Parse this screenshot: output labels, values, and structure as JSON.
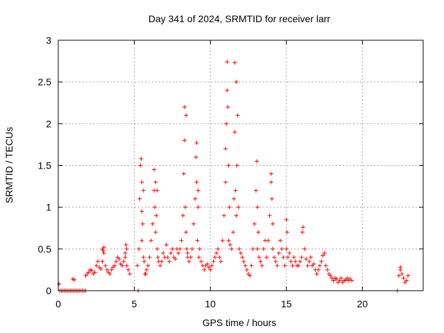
{
  "chart_data": {
    "type": "scatter",
    "title": "Day 341 of 2024, SRMTID for receiver larr",
    "xlabel": "GPS time / hours",
    "ylabel": "SRMTID / TECUs",
    "xlim": [
      0,
      24
    ],
    "ylim": [
      0,
      3
    ],
    "xticks": [
      0,
      5,
      10,
      15,
      20
    ],
    "yticks": [
      0,
      0.5,
      1,
      1.5,
      2,
      2.5,
      3
    ],
    "ytick_labels": [
      "0",
      "0.5",
      "1",
      "1.5",
      "2",
      "2.5",
      "3"
    ],
    "grid": true,
    "marker": "+",
    "series_color": "#ff0000",
    "series": [
      {
        "name": "SRMTID",
        "x": [
          0.05,
          0.1,
          0.2,
          0.3,
          0.4,
          0.5,
          0.6,
          0.7,
          0.8,
          0.9,
          1.0,
          1.1,
          1.2,
          1.3,
          1.4,
          1.5,
          1.6,
          1.7,
          1.8,
          0.95,
          1.05,
          1.8,
          1.9,
          2.0,
          2.1,
          2.2,
          2.3,
          2.4,
          2.5,
          2.6,
          2.7,
          2.8,
          2.9,
          3.0,
          3.1,
          3.2,
          3.3,
          3.4,
          3.5,
          3.6,
          3.7,
          3.8,
          3.9,
          4.0,
          4.1,
          4.2,
          4.3,
          4.4,
          4.5,
          4.6,
          4.7,
          2.9,
          2.95,
          3.0,
          4.4,
          4.5,
          4.45,
          5.2,
          5.3,
          5.35,
          5.4,
          5.45,
          5.5,
          5.5,
          5.5,
          5.55,
          5.6,
          5.6,
          5.65,
          5.7,
          5.75,
          5.8,
          5.9,
          6.0,
          6.1,
          6.2,
          6.3,
          6.3,
          6.35,
          6.4,
          6.4,
          6.45,
          6.5,
          6.5,
          6.55,
          6.6,
          6.7,
          6.8,
          6.9,
          7.0,
          7.1,
          7.2,
          7.3,
          7.4,
          7.5,
          7.6,
          7.7,
          7.8,
          7.9,
          8.0,
          8.1,
          8.2,
          8.25,
          8.3,
          8.3,
          8.35,
          8.4,
          8.4,
          8.45,
          8.5,
          8.5,
          8.6,
          8.7,
          8.8,
          8.9,
          9.0,
          9.05,
          9.1,
          9.1,
          9.15,
          9.2,
          9.2,
          9.25,
          9.3,
          9.4,
          9.5,
          9.6,
          9.7,
          9.8,
          9.9,
          10.0,
          10.1,
          10.2,
          10.3,
          10.4,
          10.5,
          10.6,
          10.7,
          10.8,
          10.9,
          11.0,
          11.0,
          11.05,
          11.1,
          11.1,
          11.15,
          11.2,
          11.2,
          11.25,
          11.3,
          11.4,
          11.5,
          11.55,
          11.6,
          11.6,
          11.65,
          11.7,
          11.7,
          11.75,
          11.8,
          11.85,
          11.9,
          12.0,
          12.1,
          12.2,
          12.3,
          12.4,
          12.5,
          12.6,
          12.7,
          12.8,
          12.9,
          13.0,
          13.05,
          13.1,
          13.1,
          13.15,
          13.2,
          13.3,
          13.4,
          13.5,
          13.6,
          13.7,
          13.8,
          13.9,
          14.0,
          14.0,
          14.05,
          14.1,
          14.1,
          14.2,
          14.3,
          14.4,
          14.5,
          14.6,
          14.7,
          14.8,
          14.9,
          15.0,
          15.0,
          15.05,
          15.1,
          15.2,
          15.3,
          15.4,
          15.5,
          15.6,
          15.7,
          15.8,
          15.9,
          16.0,
          16.05,
          16.1,
          16.2,
          16.3,
          16.4,
          16.5,
          16.6,
          16.7,
          16.8,
          16.9,
          17.0,
          17.1,
          17.2,
          17.3,
          17.4,
          17.5,
          17.6,
          17.7,
          17.8,
          17.9,
          18.0,
          18.1,
          18.2,
          18.3,
          18.4,
          18.5,
          18.6,
          18.7,
          18.8,
          18.9,
          19.0,
          19.1,
          19.2,
          19.3,
          5.25,
          22.3,
          22.4,
          22.5,
          22.5,
          22.6,
          22.7,
          22.8,
          22.9,
          23.0
        ],
        "y": [
          0.08,
          0.0,
          0.0,
          0.0,
          0.0,
          0.0,
          0.0,
          0.0,
          0.0,
          0.0,
          0.0,
          0.0,
          0.0,
          0.0,
          0.0,
          0.0,
          0.0,
          0.0,
          0.0,
          0.14,
          0.13,
          0.18,
          0.2,
          0.22,
          0.25,
          0.24,
          0.2,
          0.22,
          0.3,
          0.35,
          0.28,
          0.26,
          0.35,
          0.45,
          0.3,
          0.25,
          0.22,
          0.2,
          0.25,
          0.28,
          0.3,
          0.35,
          0.4,
          0.38,
          0.32,
          0.3,
          0.35,
          0.4,
          0.3,
          0.25,
          0.2,
          0.5,
          0.48,
          0.52,
          0.45,
          0.5,
          0.55,
          0.3,
          0.5,
          1.1,
          1.5,
          1.58,
          0.6,
          0.95,
          1.3,
          0.8,
          0.4,
          1.2,
          0.35,
          0.2,
          0.2,
          0.25,
          0.3,
          0.4,
          0.6,
          0.8,
          1.2,
          1.45,
          1.0,
          0.7,
          1.3,
          0.9,
          0.5,
          1.2,
          0.4,
          0.35,
          0.3,
          0.35,
          0.45,
          0.4,
          0.55,
          0.4,
          0.35,
          0.45,
          0.5,
          0.4,
          0.38,
          0.5,
          0.45,
          0.5,
          0.6,
          0.9,
          1.4,
          2.2,
          1.8,
          1.0,
          0.7,
          2.1,
          0.5,
          0.45,
          0.4,
          0.35,
          0.4,
          0.5,
          0.8,
          1.1,
          1.6,
          1.77,
          1.3,
          0.6,
          1.0,
          1.2,
          0.4,
          0.5,
          0.35,
          0.3,
          0.25,
          0.3,
          0.32,
          0.28,
          0.25,
          0.3,
          0.35,
          0.4,
          0.45,
          0.5,
          0.4,
          0.35,
          0.6,
          0.9,
          1.3,
          1.7,
          2.0,
          2.4,
          2.74,
          2.2,
          1.5,
          0.6,
          1.0,
          0.55,
          0.5,
          0.7,
          1.1,
          2.73,
          1.9,
          1.2,
          0.9,
          2.5,
          1.5,
          2.1,
          1.0,
          0.5,
          0.45,
          0.4,
          0.35,
          0.3,
          0.25,
          0.2,
          0.18,
          0.3,
          0.5,
          0.8,
          1.2,
          1.55,
          1.0,
          0.5,
          0.7,
          0.4,
          0.35,
          0.3,
          0.5,
          0.6,
          0.4,
          0.6,
          0.9,
          1.3,
          1.4,
          1.1,
          0.8,
          0.5,
          0.4,
          0.35,
          0.3,
          0.45,
          0.6,
          0.5,
          0.4,
          0.3,
          0.5,
          0.85,
          0.7,
          0.4,
          0.45,
          0.35,
          0.3,
          0.4,
          0.35,
          0.3,
          0.3,
          0.35,
          0.4,
          0.7,
          0.76,
          0.5,
          0.38,
          0.3,
          0.35,
          0.4,
          0.3,
          0.32,
          0.25,
          0.2,
          0.25,
          0.3,
          0.35,
          0.42,
          0.45,
          0.3,
          0.25,
          0.2,
          0.18,
          0.15,
          0.12,
          0.15,
          0.14,
          0.1,
          0.12,
          0.15,
          0.1,
          0.12,
          0.13,
          0.15,
          0.12,
          0.14,
          0.12,
          0.0,
          0.0,
          0.18,
          0.25,
          0.28,
          0.2,
          0.15,
          0.1,
          0.12,
          0.18
        ]
      }
    ]
  }
}
